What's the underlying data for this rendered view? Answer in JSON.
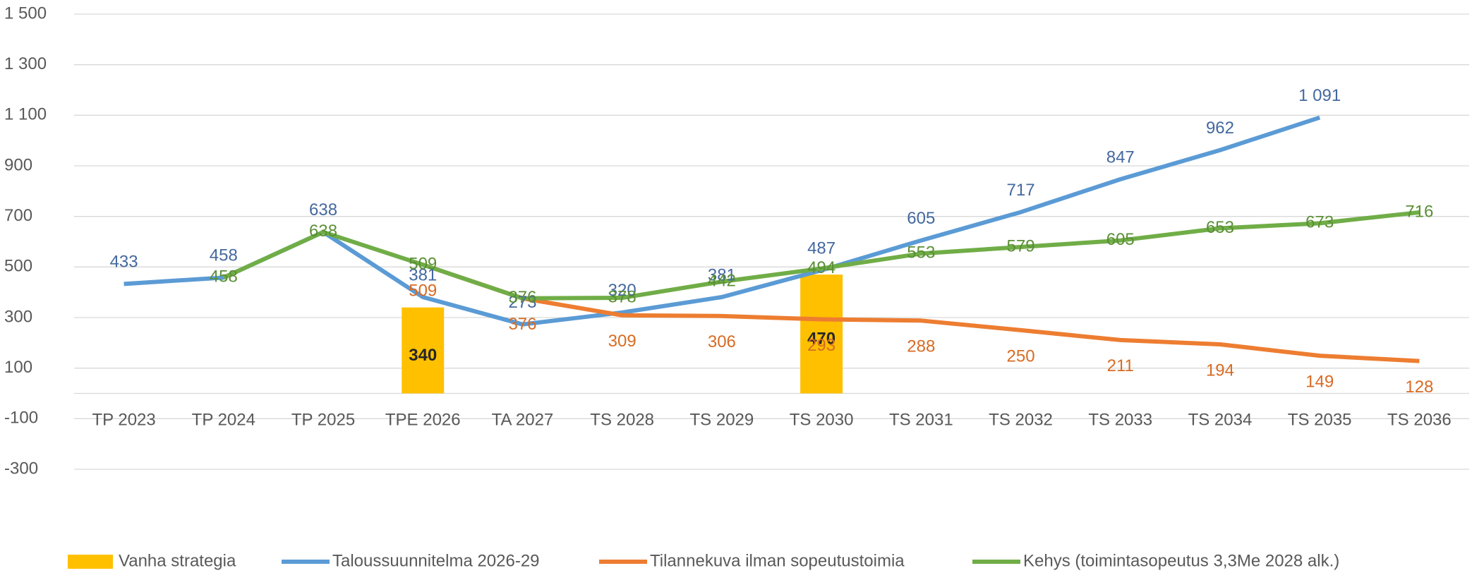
{
  "chart_data": {
    "type": "line",
    "categories": [
      "TP 2023",
      "TP 2024",
      "TP 2025",
      "TPE 2026",
      "TA 2027",
      "TS 2028",
      "TS 2029",
      "TS 2030",
      "TS 2031",
      "TS 2032",
      "TS 2033",
      "TS 2034",
      "TS 2035",
      "TS 2036"
    ],
    "ylim": [
      -300,
      1500
    ],
    "yticks": [
      {
        "value": 1500,
        "label": "1 500"
      },
      {
        "value": 1300,
        "label": "1 300"
      },
      {
        "value": 1100,
        "label": "1 100"
      },
      900,
      700,
      500,
      300,
      100,
      -100,
      -300
    ],
    "grid": true,
    "legend": "bottom",
    "series": [
      {
        "name": "Vanha strategia",
        "type": "bar",
        "color": "#ffc000",
        "label_color": "#262626",
        "values": [
          null,
          null,
          null,
          340,
          null,
          null,
          null,
          470,
          null,
          null,
          null,
          null,
          null,
          null
        ]
      },
      {
        "name": "Taloussuunnitelma 2026-29",
        "type": "line",
        "color": "#5b9bd5",
        "label_color": "#44689e",
        "label_position": "above",
        "values": [
          433,
          458,
          638,
          381,
          273,
          320,
          381,
          487,
          605,
          717,
          847,
          962,
          1091,
          null
        ],
        "value_labels": [
          "433",
          "458",
          "638",
          "381",
          "273",
          "320",
          "381",
          "487",
          "605",
          "717",
          "847",
          "962",
          "1 091",
          null
        ]
      },
      {
        "name": "Tilannekuva ilman sopeutustoimia",
        "type": "line",
        "color": "#ed7d31",
        "label_color": "#d86b23",
        "label_position": "below",
        "values": [
          null,
          null,
          null,
          509,
          376,
          309,
          306,
          293,
          288,
          250,
          211,
          194,
          149,
          128
        ]
      },
      {
        "name": "Kehys (toimintasopeutus 3,3Me 2028 alk.)",
        "type": "line",
        "color": "#70ad47",
        "label_color": "#5a8f35",
        "label_position": "center",
        "values": [
          null,
          458,
          638,
          509,
          376,
          378,
          442,
          494,
          553,
          579,
          605,
          653,
          673,
          716
        ]
      }
    ]
  }
}
